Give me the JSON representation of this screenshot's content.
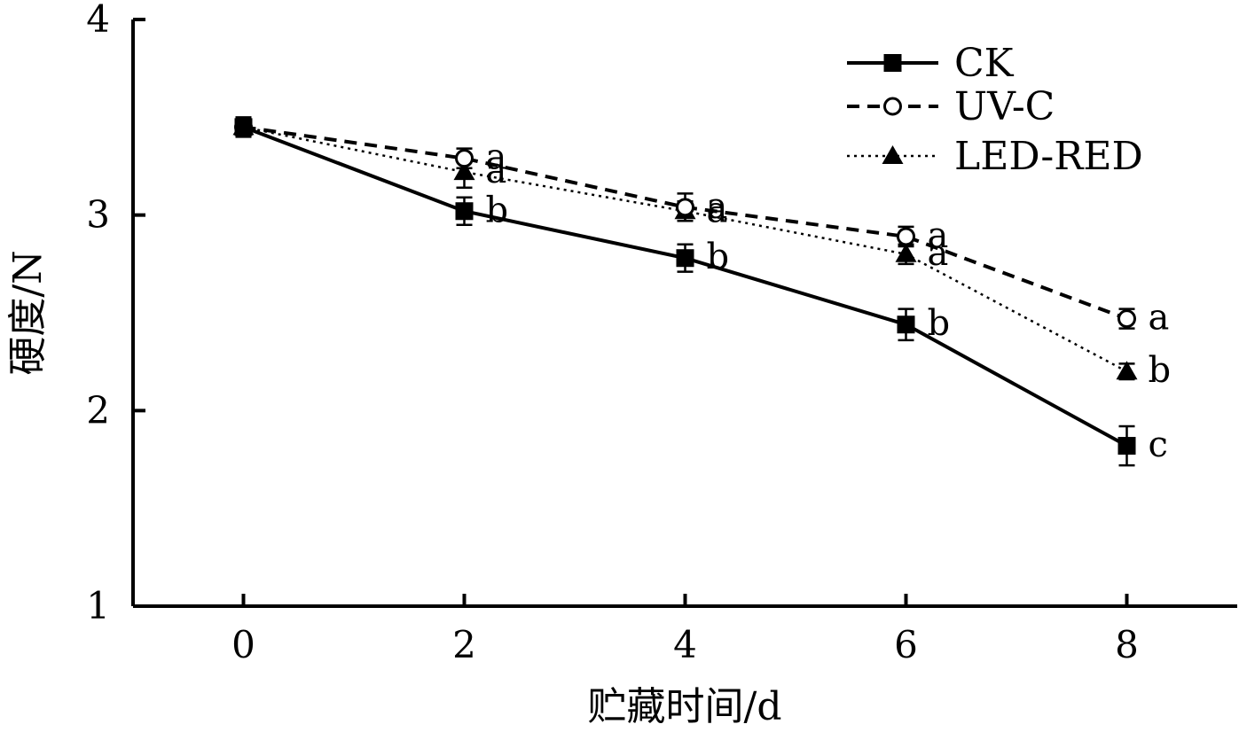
{
  "chart_data": {
    "type": "line",
    "xlabel": "贮藏时间/d",
    "ylabel": "硬度/N",
    "xlim": [
      -1,
      9
    ],
    "ylim": [
      1,
      4
    ],
    "xticks": [
      "0",
      "2",
      "4",
      "6",
      "8"
    ],
    "yticks": [
      "1",
      "2",
      "3",
      "4"
    ],
    "grid": false,
    "legend_position": "top-right",
    "x": [
      0,
      2,
      4,
      6,
      8
    ],
    "series": [
      {
        "name": "CK",
        "marker": "filled-square",
        "linestyle": "solid",
        "color": "#000000",
        "values": [
          3.45,
          3.02,
          2.78,
          2.44,
          1.82
        ],
        "errors": [
          0.05,
          0.07,
          0.07,
          0.08,
          0.1
        ],
        "letters": [
          "",
          "b",
          "b",
          "b",
          "c"
        ]
      },
      {
        "name": "UV-C",
        "marker": "open-circle",
        "linestyle": "dashed",
        "color": "#000000",
        "values": [
          3.45,
          3.29,
          3.04,
          2.89,
          2.47
        ],
        "errors": [
          0.04,
          0.05,
          0.07,
          0.05,
          0.05
        ],
        "letters": [
          "",
          "a",
          "a",
          "a",
          "a"
        ]
      },
      {
        "name": "LED-RED",
        "marker": "filled-triangle",
        "linestyle": "dotted",
        "color": "#000000",
        "values": [
          3.45,
          3.22,
          3.02,
          2.8,
          2.2
        ],
        "errors": [
          0.04,
          0.08,
          0.05,
          0.05,
          0.04
        ],
        "letters": [
          "",
          "a",
          "a",
          "a",
          "b"
        ]
      }
    ]
  }
}
